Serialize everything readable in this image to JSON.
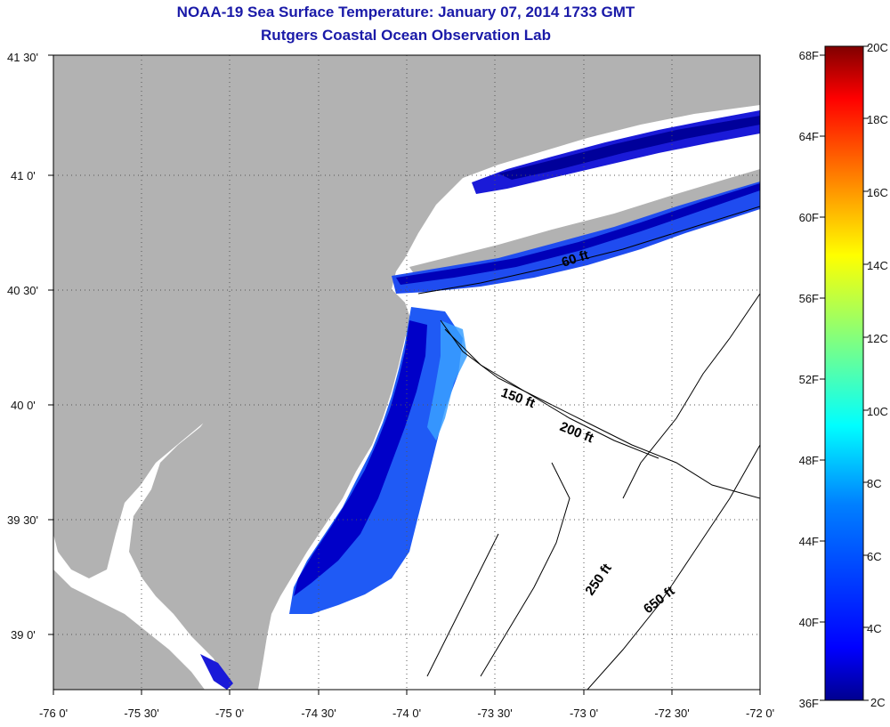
{
  "header": {
    "title": "NOAA-19 Sea Surface Temperature:  January 07, 2014 1733 GMT",
    "subtitle": "Rutgers Coastal Ocean Observation Lab"
  },
  "map": {
    "lat_labels": [
      "41 30'",
      "41 0'",
      "40 30'",
      "40 0'",
      "39 30'",
      "39 0'"
    ],
    "lon_labels": [
      "-76 0'",
      "-75 30'",
      "-75 0'",
      "-74 30'",
      "-74 0'",
      "-73 30'",
      "-73 0'",
      "-72 30'",
      "-72 0'"
    ],
    "land_color": "#b2b2b2",
    "water_color": "#ffffff",
    "contour_labels": [
      "60 ft",
      "150 ft",
      "200 ft",
      "250 ft",
      "650 ft"
    ]
  },
  "colorbar": {
    "f_labels": [
      "68F",
      "64F",
      "60F",
      "56F",
      "52F",
      "48F",
      "44F",
      "40F",
      "36F"
    ],
    "c_labels": [
      "20C",
      "18C",
      "16C",
      "14C",
      "12C",
      "10C",
      "8C",
      "6C",
      "4C",
      "2C"
    ],
    "colors": [
      "#00008f",
      "#0000ff",
      "#0080ff",
      "#00ffff",
      "#80ff80",
      "#ffff00",
      "#ff8000",
      "#ff0000",
      "#800000"
    ]
  }
}
